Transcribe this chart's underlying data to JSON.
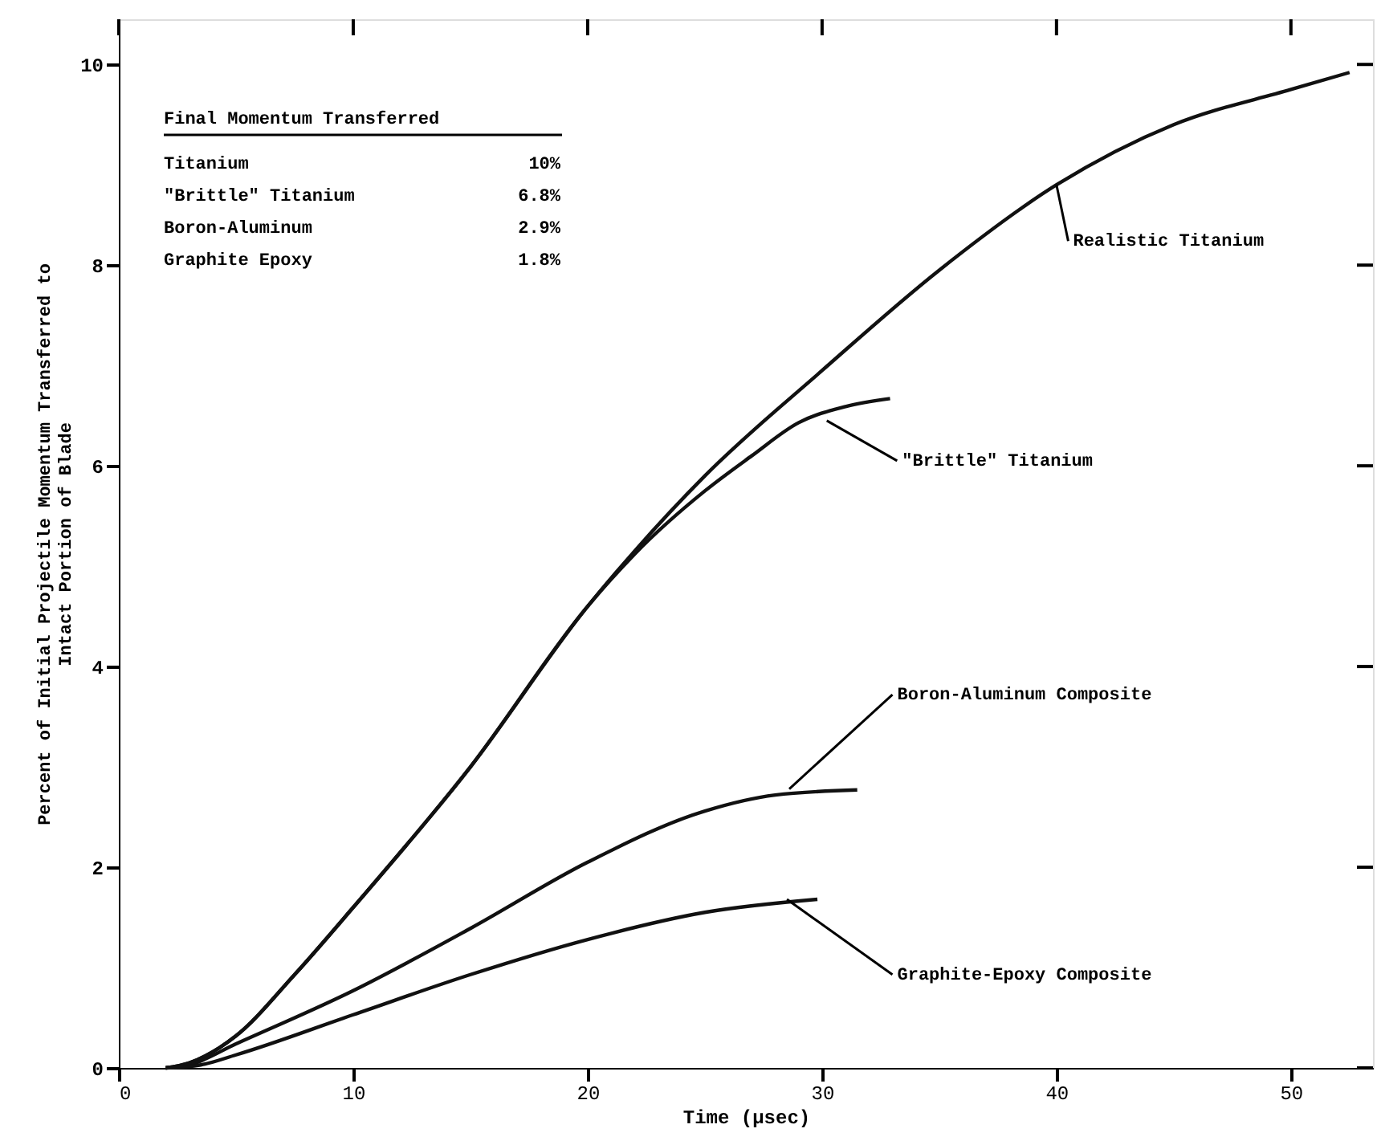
{
  "chart_data": {
    "type": "line",
    "xlabel": "Time (μsec)",
    "ylabel": "Percent of Initial Projectile Momentum Transferred to\nIntact Portion of Blade",
    "xlim": [
      0,
      53.5
    ],
    "ylim": [
      0,
      10.45
    ],
    "xticks": [
      0,
      10,
      20,
      30,
      40,
      50
    ],
    "yticks": [
      0,
      2,
      4,
      6,
      8,
      10
    ],
    "grid": false,
    "marker": "none",
    "line_style": "solid",
    "series": [
      {
        "color": "#111111",
        "x": [
          2,
          3,
          5,
          7.5,
          10,
          15,
          20,
          22,
          25,
          30,
          35,
          40,
          45,
          50,
          52.5
        ],
        "values": [
          0,
          0.05,
          0.32,
          0.93,
          1.6,
          3.0,
          4.6,
          5.15,
          5.9,
          6.95,
          7.95,
          8.8,
          9.4,
          9.75,
          9.92
        ]
      },
      {
        "color": "#111111",
        "x": [
          2,
          3,
          5,
          7.5,
          10,
          15,
          20,
          22,
          25,
          27,
          29,
          31,
          32.9
        ],
        "values": [
          0,
          0.05,
          0.32,
          0.93,
          1.6,
          3.0,
          4.6,
          5.12,
          5.75,
          6.1,
          6.43,
          6.59,
          6.67
        ]
      },
      {
        "color": "#111111",
        "x": [
          2,
          3,
          5,
          10,
          15,
          20,
          25,
          28,
          31.5
        ],
        "values": [
          0,
          0.03,
          0.24,
          0.77,
          1.39,
          2.05,
          2.56,
          2.72,
          2.77
        ]
      },
      {
        "color": "#111111",
        "x": [
          2,
          3.5,
          5,
          10,
          15,
          20,
          25,
          29.8
        ],
        "values": [
          0,
          0.03,
          0.13,
          0.53,
          0.93,
          1.28,
          1.55,
          1.68
        ]
      }
    ],
    "annotations": [
      {
        "text": "Realistic Titanium",
        "x": 40,
        "y": 8.8
      },
      {
        "text": "\"Brittle\" Titanium",
        "x": 30.2,
        "y": 6.45
      },
      {
        "text": "Boron-Aluminum Composite",
        "x": 28.6,
        "y": 2.78
      },
      {
        "text": "Graphite-Epoxy Composite",
        "x": 28.5,
        "y": 1.68
      },
      "Final Momentum Transferred",
      "Titanium",
      "10%",
      "\"Brittle\" Titanium",
      "6.8%",
      "Boron-Aluminum",
      "2.9%",
      "Graphite Epoxy",
      "1.8%"
    ]
  }
}
